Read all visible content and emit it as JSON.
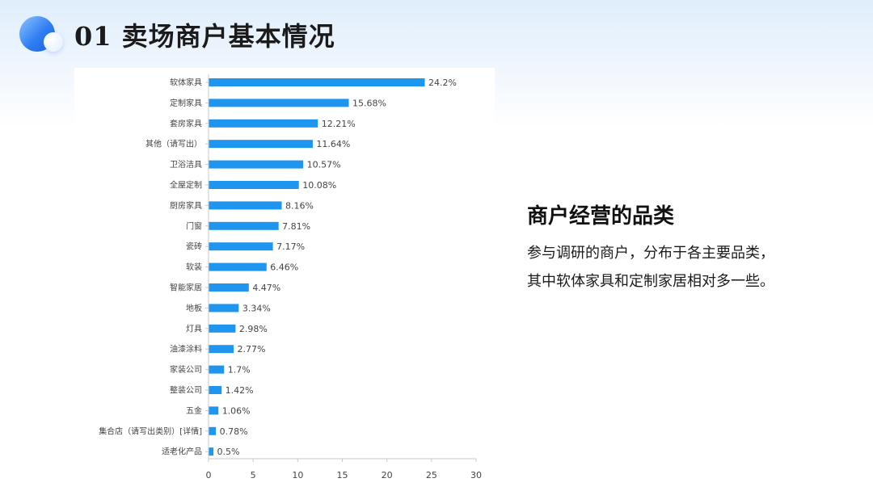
{
  "header": {
    "title": "01 卖场商户基本情况"
  },
  "side_text": {
    "heading": "商户经营的品类",
    "lines": [
      "参与调研的商户，分布于各主要品类，",
      "其中软体家具和定制家居相对多一些。"
    ]
  },
  "colors": {
    "bar": "#1e96f0",
    "axis": "#c8c8c8",
    "label": "#444444",
    "title": "#1b1b1b"
  },
  "chart_data": {
    "type": "bar",
    "orientation": "horizontal",
    "title": "",
    "xlabel": "",
    "ylabel": "",
    "xlim": [
      0,
      30
    ],
    "xticks": [
      0,
      5,
      10,
      15,
      20,
      25,
      30
    ],
    "grid": false,
    "legend": "none",
    "value_suffix": "%",
    "categories": [
      "软体家具",
      "定制家具",
      "套房家具",
      "其他（请写出）",
      "卫浴洁具",
      "全屋定制",
      "厨房家具",
      "门窗",
      "瓷砖",
      "软装",
      "智能家居",
      "地板",
      "灯具",
      "油漆涂料",
      "家装公司",
      "整装公司",
      "五金",
      "集合店（请写出类别）[详情]",
      "适老化产品"
    ],
    "values": [
      24.2,
      15.68,
      12.21,
      11.64,
      10.57,
      10.08,
      8.16,
      7.81,
      7.17,
      6.46,
      4.47,
      3.34,
      2.98,
      2.77,
      1.7,
      1.42,
      1.06,
      0.78,
      0.5
    ],
    "value_labels": [
      "24.2%",
      "15.68%",
      "12.21%",
      "11.64%",
      "10.57%",
      "10.08%",
      "8.16%",
      "7.81%",
      "7.17%",
      "6.46%",
      "4.47%",
      "3.34%",
      "2.98%",
      "2.77%",
      "1.7%",
      "1.42%",
      "1.06%",
      "0.78%",
      "0.5%"
    ]
  }
}
